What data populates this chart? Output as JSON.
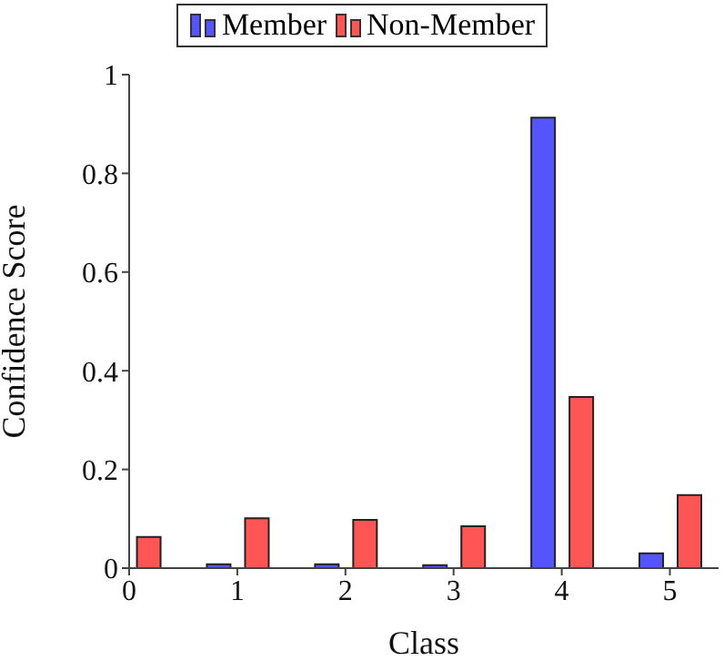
{
  "chart_data": {
    "type": "bar",
    "xlabel": "Class",
    "ylabel": "Confidence Score",
    "x": [
      0,
      1,
      2,
      3,
      4,
      5
    ],
    "series": [
      {
        "name": "Member",
        "color": "#5555ff",
        "values": [
          null,
          0.008,
          0.008,
          0.006,
          0.913,
          0.03
        ]
      },
      {
        "name": "Non-Member",
        "color": "#ff5555",
        "values": [
          0.063,
          0.101,
          0.098,
          0.085,
          0.347,
          0.148
        ]
      }
    ],
    "xlim": [
      0,
      5.45
    ],
    "xticks": [
      0,
      1,
      2,
      3,
      4,
      5
    ],
    "ylim": [
      0,
      1
    ],
    "yticks": [
      0,
      0.2,
      0.4,
      0.6,
      0.8,
      1
    ],
    "legend": "top"
  }
}
